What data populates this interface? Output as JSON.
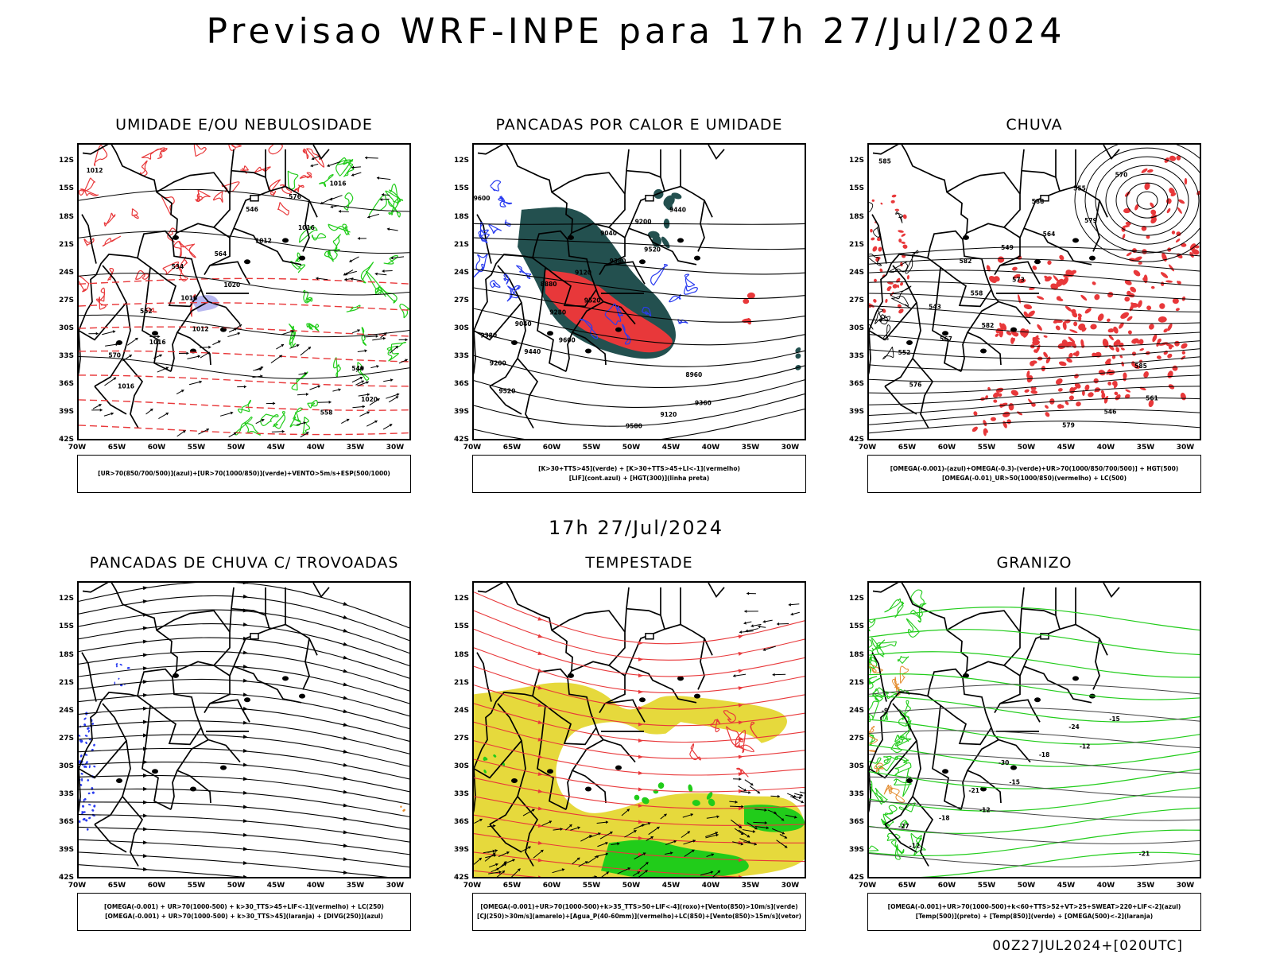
{
  "header": {
    "title": "Previsao WRF-INPE  para 17h 27/Jul/2024"
  },
  "middle": {
    "subtitle": "17h 27/Jul/2024"
  },
  "footer": {
    "stamp": "00Z27JUL2024+[020UTC]"
  },
  "axes": {
    "lat_labels": [
      "12S",
      "15S",
      "18S",
      "21S",
      "24S",
      "27S",
      "30S",
      "33S",
      "36S",
      "39S",
      "42S"
    ],
    "lon_labels": [
      "70W",
      "65W",
      "60W",
      "55W",
      "50W",
      "45W",
      "40W",
      "35W",
      "30W"
    ]
  },
  "colors": {
    "red": "#e8383a",
    "green": "#21cc1a",
    "blue": "#2a3cf0",
    "teal": "#23504f",
    "yellow": "#e6d93c",
    "orange": "#e38a2b",
    "black": "#000000"
  },
  "panels": [
    {
      "id": "umidade",
      "title": "UMIDADE E/OU NEBULOSIDADE",
      "legend": [
        "[UR>70(850/700/500)](azul)+[UR>70(1000/850)](verde)+VENTO>5m/s+ESP(500/1000)"
      ],
      "contour_labels": [
        "1012",
        "1012",
        "1016",
        "1016",
        "1020",
        "1016",
        "1016",
        "1012",
        "1020",
        "1016",
        "576",
        "570",
        "564",
        "558",
        "552",
        "546",
        "540",
        "534"
      ]
    },
    {
      "id": "pancadas",
      "title": "PANCADAS POR CALOR E UMIDADE",
      "legend": [
        "[K>30+TTS>45](verde) + [K>30+TTS>45+LI<-1](vermelho)",
        "[LIF](cont.azul) + [HGT(300)](linha preta)"
      ],
      "contour_labels": [
        "9600",
        "9600",
        "9520",
        "9520",
        "9520",
        "9440",
        "9440",
        "9380",
        "9360",
        "9280",
        "9200",
        "9200",
        "9120",
        "9120",
        "9040",
        "9040",
        "8960",
        "8880",
        "9580",
        "9380"
      ]
    },
    {
      "id": "chuva",
      "title": "CHUVA",
      "legend": [
        "[OMEGA(-0.001)-(azul)+OMEGA(-0.3)-(verde)+UR>70(1000/850/700/500)] + HGT(500)",
        "[OMEGA(-0.01)_UR>50(1000/850)(vermelho) + LC(500)"
      ],
      "contour_labels": [
        "585",
        "582",
        "579",
        "576",
        "573",
        "570",
        "567",
        "564",
        "561",
        "558",
        "555",
        "552",
        "549",
        "546",
        "543",
        "588",
        "585",
        "582",
        "579"
      ]
    },
    {
      "id": "trovoadas",
      "title": "PANCADAS DE CHUVA C/ TROVOADAS",
      "legend": [
        "[OMEGA(-0.001) + UR>70(1000-500) + k>30_TTS>45+LIF<-1](vermelho) + LC(250)",
        "[OMEGA(-0.001) + UR>70(1000-500) + k>30_TTS>45](laranja) + [DIVG(250)](azul)"
      ],
      "contour_labels": []
    },
    {
      "id": "tempestade",
      "title": "TEMPESTADE",
      "legend": [
        "[OMEGA(-0.001)+UR>70(1000-500)+k>35_TTS>50+LIF<-4](roxo)+[Vento(850)>10m/s](verde)",
        "[CJ(250)>30m/s](amarelo)+[Agua_P(40-60mm)](vermelho)+LC(850)+[Vento(850)>15m/s](vetor)"
      ],
      "contour_labels": []
    },
    {
      "id": "granizo",
      "title": "GRANIZO",
      "legend": [
        "[OMEGA(-0.001)+UR>70(1000-500)+k<60+TTS>52+VT>25+SWEAT>220+LIF<-2](azul)",
        "[Temp(500)](preto) + [Temp(850)](verde) + [OMEGA(500)<-2](laranja)"
      ],
      "contour_labels": [
        "-9",
        "-12",
        "-12",
        "-12",
        "-15",
        "-15",
        "-18",
        "-18",
        "-21",
        "-21",
        "-24",
        "-27",
        "-30"
      ]
    }
  ]
}
